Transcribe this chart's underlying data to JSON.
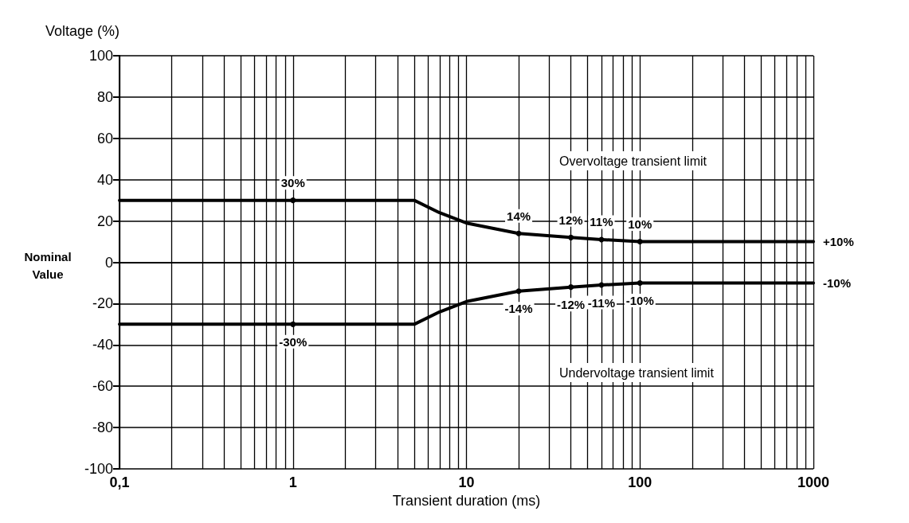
{
  "chart_data": {
    "type": "line",
    "xlabel": "Transient duration (ms)",
    "ylabel": "Voltage (%)",
    "log": "x",
    "xlim": [
      0.1,
      1000
    ],
    "xticks": [
      {
        "value": 0.1,
        "label": "0,1"
      },
      {
        "value": 0.2,
        "label": null
      },
      {
        "value": 0.3,
        "label": null
      },
      {
        "value": 0.4,
        "label": null
      },
      {
        "value": 0.5,
        "label": null
      },
      {
        "value": 0.6,
        "label": null
      },
      {
        "value": 0.7,
        "label": null
      },
      {
        "value": 0.8,
        "label": null
      },
      {
        "value": 0.9,
        "label": null
      },
      1,
      {
        "value": 2,
        "label": null
      },
      {
        "value": 3,
        "label": null
      },
      {
        "value": 4,
        "label": null
      },
      {
        "value": 5,
        "label": null
      },
      {
        "value": 6,
        "label": null
      },
      {
        "value": 7,
        "label": null
      },
      {
        "value": 8,
        "label": null
      },
      {
        "value": 9,
        "label": null
      },
      10,
      {
        "value": 20,
        "label": null
      },
      {
        "value": 30,
        "label": null
      },
      {
        "value": 40,
        "label": null
      },
      {
        "value": 50,
        "label": null
      },
      {
        "value": 60,
        "label": null
      },
      {
        "value": 70,
        "label": null
      },
      {
        "value": 80,
        "label": null
      },
      {
        "value": 90,
        "label": null
      },
      100,
      {
        "value": 200,
        "label": null
      },
      {
        "value": 300,
        "label": null
      },
      {
        "value": 400,
        "label": null
      },
      {
        "value": 500,
        "label": null
      },
      {
        "value": 600,
        "label": null
      },
      {
        "value": 700,
        "label": null
      },
      {
        "value": 800,
        "label": null
      },
      {
        "value": 900,
        "label": null
      },
      1000
    ],
    "ylim": [
      -100,
      100
    ],
    "yticks": [
      -100,
      -80,
      -60,
      -40,
      -20,
      0,
      20,
      40,
      60,
      80,
      100
    ],
    "grid": true,
    "series": [
      {
        "color": "#000000",
        "x": [
          0.1,
          1,
          5,
          7,
          10,
          20,
          40,
          60,
          100,
          1000
        ],
        "values": [
          30,
          30,
          30,
          24,
          19,
          14,
          12,
          11,
          10,
          10
        ],
        "value_labels": [
          null,
          "30%",
          null,
          null,
          null,
          "14%",
          "12%",
          "11%",
          "10%",
          "+10%"
        ]
      },
      {
        "color": "#000000",
        "x": [
          0.1,
          1,
          5,
          7,
          10,
          20,
          40,
          60,
          100,
          1000
        ],
        "values": [
          -30,
          -30,
          -30,
          -24,
          -19,
          -14,
          -12,
          -11,
          -10,
          -10
        ],
        "value_labels": [
          null,
          "-30%",
          null,
          null,
          null,
          "-14%",
          "-12%",
          "-11%",
          "-10%",
          "-10%"
        ]
      }
    ],
    "annotations": [
      "Overvoltage transient limit",
      "Undervoltage transient limit",
      "Nominal\nValue"
    ]
  }
}
